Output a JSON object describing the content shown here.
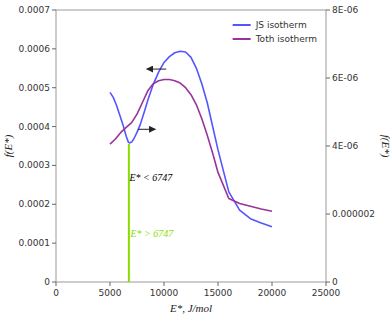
{
  "chart_data": {
    "type": "line",
    "xlabel": "E*, J/mol",
    "ylabel": "f(E*)",
    "y2label": "f(E*)",
    "xlim": [
      0,
      25000
    ],
    "ylim": [
      0,
      0.0007
    ],
    "y2lim": [
      0,
      8e-06
    ],
    "xticks": [
      0,
      5000,
      10000,
      15000,
      20000,
      25000
    ],
    "yticks": [
      0,
      0.0001,
      0.0002,
      0.0003,
      0.0004,
      0.0005,
      0.0006,
      0.0007
    ],
    "y2ticks": [
      0,
      2e-06,
      {
        "value": 4e-06,
        "label": "4E-06"
      },
      {
        "value": 6e-06,
        "label": "6E-06"
      },
      {
        "value": 8e-06,
        "label": "8E-06"
      }
    ],
    "grid": false,
    "legend": "upper right",
    "series": [
      {
        "name": "JS isotherm",
        "color": "#5555ff",
        "x": [
          5000,
          5300,
          5600,
          5900,
          6200,
          6500,
          6700,
          6800,
          7000,
          7200,
          7500,
          7800,
          8200,
          8500,
          9000,
          9500,
          10000,
          10500,
          11000,
          11500,
          12000,
          12500,
          13000,
          13500,
          14000,
          15000,
          16000,
          17000,
          18000,
          19000,
          20000
        ],
        "values": [
          0.000488,
          0.000475,
          0.000455,
          0.00043,
          0.000405,
          0.000375,
          0.00036,
          0.000358,
          0.00036,
          0.000368,
          0.000385,
          0.000405,
          0.00044,
          0.000468,
          0.000508,
          0.00054,
          0.000565,
          0.00058,
          0.00059,
          0.000594,
          0.000592,
          0.000578,
          0.00055,
          0.00051,
          0.000462,
          0.00034,
          0.000232,
          0.000185,
          0.000163,
          0.000152,
          0.000142
        ]
      },
      {
        "name": "Toth isotherm",
        "color": "#993399",
        "x": [
          5000,
          5500,
          6000,
          6500,
          7000,
          7500,
          8000,
          8500,
          9000,
          9500,
          10000,
          10500,
          11000,
          11500,
          12000,
          12500,
          13000,
          13500,
          14000,
          14500,
          15000,
          16000,
          17000,
          18000,
          19000,
          20000
        ],
        "values": [
          0.000355,
          0.000368,
          0.000385,
          0.000398,
          0.00041,
          0.000432,
          0.000462,
          0.000492,
          0.00051,
          0.000518,
          0.000521,
          0.000521,
          0.000518,
          0.000512,
          0.0005,
          0.000482,
          0.000456,
          0.00042,
          0.000378,
          0.000332,
          0.000282,
          0.000215,
          0.000202,
          0.000195,
          0.000188,
          0.000182
        ]
      }
    ],
    "vlines": [
      {
        "x": 6747,
        "y_to": 0.000355,
        "color": "#88dd00"
      }
    ],
    "annotations": [
      {
        "text": "E* < 6747",
        "x": 6800,
        "y": 0.00026,
        "color": "#000000"
      },
      {
        "text": "E* > 6747",
        "x": 6900,
        "y": 0.000115,
        "color": "#88dd00"
      }
    ],
    "arrows": [
      {
        "x_from": 10200,
        "y_from": 0.000548,
        "x_to": 8400,
        "y_to": 0.000548
      },
      {
        "x_from": 7600,
        "y_from": 0.000393,
        "x_to": 9200,
        "y_to": 0.000393
      }
    ]
  }
}
